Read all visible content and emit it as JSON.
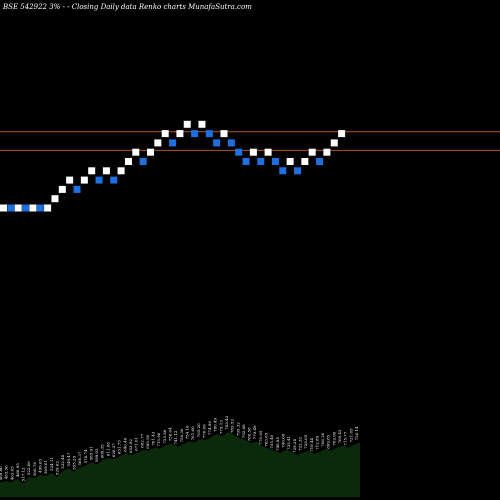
{
  "header": {
    "text": "BSE 542922  3% - -  Closing Daily data  Renko  charts MunafaSutra.com"
  },
  "colors": {
    "background": "#000000",
    "up_brick": "#ffffff",
    "down_brick": "#1e6fe0",
    "level_line": "#b3541e",
    "volume_fill": "#0b2a0b"
  },
  "chart_data": {
    "type": "renko",
    "brick_percent": 3,
    "title": "BSE 542922  3% - -  Closing Daily data  Renko  charts MunafaSutra.com",
    "bricks": [
      {
        "dir": "up",
        "level": 0
      },
      {
        "dir": "down",
        "level": 0
      },
      {
        "dir": "up",
        "level": 0
      },
      {
        "dir": "down",
        "level": 0
      },
      {
        "dir": "up",
        "level": 0
      },
      {
        "dir": "down",
        "level": 0
      },
      {
        "dir": "up",
        "level": 0
      },
      {
        "dir": "up",
        "level": 1
      },
      {
        "dir": "up",
        "level": 2
      },
      {
        "dir": "up",
        "level": 3
      },
      {
        "dir": "down",
        "level": 2
      },
      {
        "dir": "up",
        "level": 3
      },
      {
        "dir": "up",
        "level": 4
      },
      {
        "dir": "down",
        "level": 3
      },
      {
        "dir": "up",
        "level": 4
      },
      {
        "dir": "down",
        "level": 3
      },
      {
        "dir": "up",
        "level": 4
      },
      {
        "dir": "up",
        "level": 5
      },
      {
        "dir": "up",
        "level": 6
      },
      {
        "dir": "down",
        "level": 5
      },
      {
        "dir": "up",
        "level": 6
      },
      {
        "dir": "up",
        "level": 7
      },
      {
        "dir": "up",
        "level": 8
      },
      {
        "dir": "down",
        "level": 7
      },
      {
        "dir": "up",
        "level": 8
      },
      {
        "dir": "up",
        "level": 9
      },
      {
        "dir": "down",
        "level": 8
      },
      {
        "dir": "up",
        "level": 9
      },
      {
        "dir": "down",
        "level": 8
      },
      {
        "dir": "down",
        "level": 7
      },
      {
        "dir": "up",
        "level": 8
      },
      {
        "dir": "down",
        "level": 7
      },
      {
        "dir": "down",
        "level": 6
      },
      {
        "dir": "down",
        "level": 5
      },
      {
        "dir": "up",
        "level": 6
      },
      {
        "dir": "down",
        "level": 5
      },
      {
        "dir": "up",
        "level": 6
      },
      {
        "dir": "down",
        "level": 5
      },
      {
        "dir": "down",
        "level": 4
      },
      {
        "dir": "up",
        "level": 5
      },
      {
        "dir": "down",
        "level": 4
      },
      {
        "dir": "up",
        "level": 5
      },
      {
        "dir": "up",
        "level": 6
      },
      {
        "dir": "down",
        "level": 5
      },
      {
        "dir": "up",
        "level": 6
      },
      {
        "dir": "up",
        "level": 7
      },
      {
        "dir": "up",
        "level": 8
      }
    ],
    "horizontal_levels": [
      8.2,
      6.2
    ],
    "volume_labels": [
      "469.80",
      "483.36",
      "463.05",
      "468.95",
      "517.12",
      "522.66",
      "500.78",
      "499.65",
      "509.01",
      "524.11",
      "529.62",
      "532.48",
      "549.47",
      "555.35",
      "566.37",
      "574.74",
      "585.91",
      "599.05",
      "600.35",
      "611.68",
      "620.37",
      "631.73",
      "640.46",
      "653.92",
      "671.01",
      "682.77",
      "695.50",
      "701.43",
      "715.96",
      "725.80",
      "738.04",
      "741.12",
      "750.30",
      "754.16",
      "761.60",
      "765.20",
      "770.09",
      "774.96",
      "780.49",
      "779.13",
      "783.43",
      "789.52",
      "795.32",
      "792.68",
      "786.58",
      "779.49",
      "770.85",
      "763.65",
      "755.40",
      "748.85",
      "740.08",
      "735.41",
      "729.24",
      "722.32",
      "726.05",
      "719.44",
      "712.89",
      "706.26",
      "699.85",
      "702.96",
      "709.43",
      "715.77",
      "721.05",
      "726.14"
    ],
    "volume_profile": [
      14,
      15,
      14,
      17,
      13,
      19,
      18,
      21,
      20,
      23,
      19,
      25,
      27,
      24,
      28,
      30,
      33,
      31,
      35,
      37,
      36,
      39,
      41,
      40,
      42,
      45,
      44,
      47,
      46,
      49,
      51,
      48,
      50,
      53,
      52,
      55,
      54,
      57,
      60,
      58,
      62,
      59,
      56,
      54,
      51,
      53,
      48,
      46,
      44,
      42,
      45,
      43,
      40,
      42,
      44,
      41,
      43,
      46,
      44,
      47,
      49,
      47,
      50,
      52
    ]
  }
}
